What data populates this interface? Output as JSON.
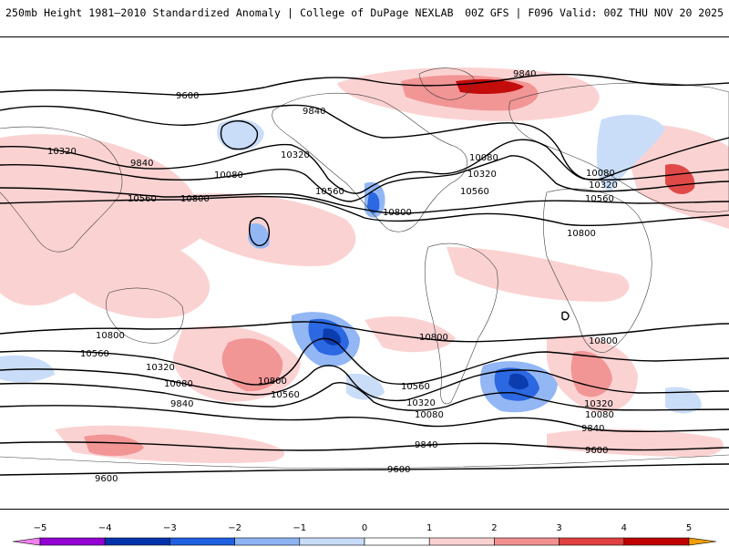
{
  "header": {
    "title": "250mb Height 1981–2010 Standardized Anomaly | College of DuPage NEXLAB",
    "run_info": "00Z GFS | F096 Valid: 00Z THU NOV 20 2025"
  },
  "map": {
    "contours": [
      {
        "id": "c9600a",
        "label": "9600"
      },
      {
        "id": "c9840a",
        "label": "9840"
      },
      {
        "id": "c9840b",
        "label": "9840"
      },
      {
        "id": "c10080a",
        "label": "10080"
      },
      {
        "id": "c10320a",
        "label": "10320"
      },
      {
        "id": "c10560a",
        "label": "10560"
      },
      {
        "id": "c10800a",
        "label": "10800"
      },
      {
        "id": "c10320b",
        "label": "10320"
      },
      {
        "id": "c10560b",
        "label": "10560"
      },
      {
        "id": "c10800b",
        "label": "10800"
      },
      {
        "id": "c10080b",
        "label": "10080"
      },
      {
        "id": "c10320c",
        "label": "10320"
      },
      {
        "id": "c10560c",
        "label": "10560"
      },
      {
        "id": "c10800c",
        "label": "10800"
      },
      {
        "id": "c10080c",
        "label": "10080"
      },
      {
        "id": "c10320d",
        "label": "10320"
      },
      {
        "id": "c10560d",
        "label": "10560"
      },
      {
        "id": "c10800d",
        "label": "10800"
      },
      {
        "id": "c9840c",
        "label": "9840"
      },
      {
        "id": "c9840d",
        "label": "9840"
      },
      {
        "id": "c9600b",
        "label": "9600"
      },
      {
        "id": "c9600c",
        "label": "9600"
      },
      {
        "id": "c9600d",
        "label": "9600"
      },
      {
        "id": "c10800e",
        "label": "10800"
      },
      {
        "id": "c10560e",
        "label": "10560"
      },
      {
        "id": "c10320e",
        "label": "10320"
      },
      {
        "id": "c10080d",
        "label": "10080"
      },
      {
        "id": "c9840e",
        "label": "9840"
      },
      {
        "id": "c10800f",
        "label": "10800"
      },
      {
        "id": "c10800g",
        "label": "10800"
      },
      {
        "id": "c10560f",
        "label": "10560"
      },
      {
        "id": "c10320f",
        "label": "10320"
      },
      {
        "id": "c10080e",
        "label": "10080"
      },
      {
        "id": "c9840f",
        "label": "9840"
      },
      {
        "id": "c10560g",
        "label": "10560"
      },
      {
        "id": "c10320g",
        "label": "10320"
      },
      {
        "id": "c10080f",
        "label": "10080"
      },
      {
        "id": "c9840g",
        "label": "9840"
      },
      {
        "id": "c10800h",
        "label": "10800"
      }
    ]
  },
  "colorbar": {
    "ticks": [
      "−5",
      "−4",
      "−3",
      "−2",
      "−1",
      "0",
      "1",
      "2",
      "3",
      "4",
      "5"
    ],
    "colors": [
      "#ee82ee",
      "#9400d3",
      "#0033aa",
      "#2060e0",
      "#8eb4f4",
      "#c8dcf8",
      "#ffffff",
      "#fbd0d0",
      "#f29090",
      "#e04040",
      "#c00000",
      "#f0a000"
    ]
  }
}
